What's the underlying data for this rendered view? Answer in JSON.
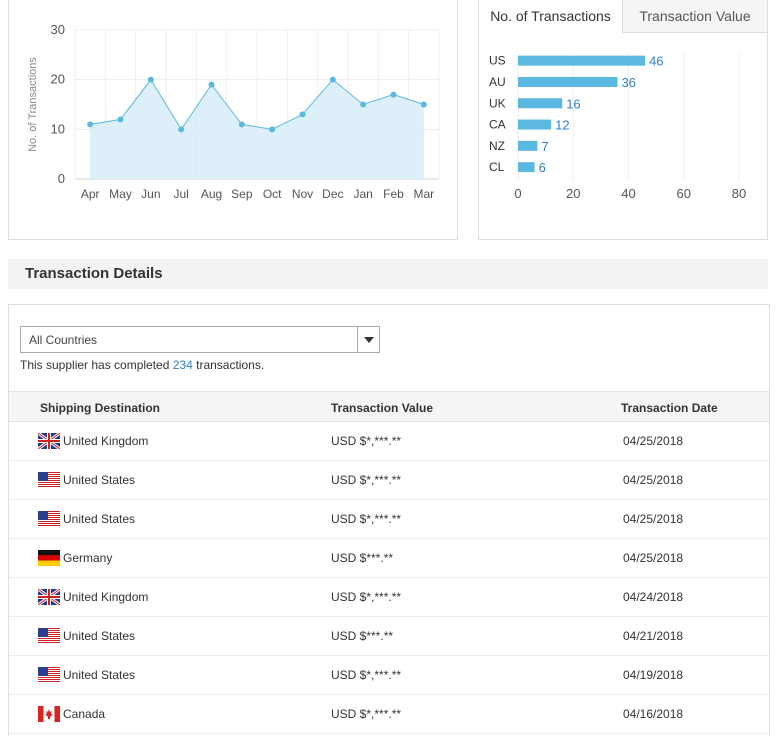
{
  "line_chart": {
    "chart_data": {
      "type": "area",
      "categories": [
        "Apr",
        "May",
        "Jun",
        "Jul",
        "Aug",
        "Sep",
        "Oct",
        "Nov",
        "Dec",
        "Jan",
        "Feb",
        "Mar"
      ],
      "values": [
        11,
        12,
        20,
        10,
        19,
        11,
        10,
        13,
        20,
        15,
        17,
        15
      ],
      "ylabel": "No. of Transactions",
      "ylim": [
        0,
        30
      ],
      "yticks": [
        0,
        10,
        20,
        30
      ],
      "grid": true
    },
    "colors": {
      "line": "#5bb8e0",
      "fill": "#d7ecf8",
      "point": "#5bb8e0"
    }
  },
  "bar_chart": {
    "tabs": [
      {
        "label": "No. of Transactions",
        "active": true
      },
      {
        "label": "Transaction Value",
        "active": false
      }
    ],
    "chart_data": {
      "type": "bar",
      "orientation": "horizontal",
      "categories": [
        "US",
        "AU",
        "UK",
        "CA",
        "NZ",
        "CL"
      ],
      "values": [
        46,
        36,
        16,
        12,
        7,
        6
      ],
      "xlim": [
        0,
        80
      ],
      "xticks": [
        0,
        20,
        40,
        60,
        80
      ],
      "grid": true
    },
    "colors": {
      "bar": "#5bb8e0",
      "label": "#2f7fc1"
    }
  },
  "details": {
    "title": "Transaction Details",
    "filter": {
      "selected": "All Countries"
    },
    "summary": {
      "prefix": "This supplier has completed ",
      "count": "234",
      "suffix": " transactions."
    },
    "columns": [
      "Shipping Destination",
      "Transaction Value",
      "Transaction Date"
    ],
    "rows": [
      {
        "flag": "uk-flag-icon",
        "country": "United Kingdom",
        "value": "USD $*,***.**",
        "date": "04/25/2018"
      },
      {
        "flag": "us-flag-icon",
        "country": "United States",
        "value": "USD $*,***.**",
        "date": "04/25/2018"
      },
      {
        "flag": "us-flag-icon",
        "country": "United States",
        "value": "USD $*,***.**",
        "date": "04/25/2018"
      },
      {
        "flag": "de-flag-icon",
        "country": "Germany",
        "value": "USD $***.**",
        "date": "04/25/2018"
      },
      {
        "flag": "uk-flag-icon",
        "country": "United Kingdom",
        "value": "USD $*,***.**",
        "date": "04/24/2018"
      },
      {
        "flag": "us-flag-icon",
        "country": "United States",
        "value": "USD $***.**",
        "date": "04/21/2018"
      },
      {
        "flag": "us-flag-icon",
        "country": "United States",
        "value": "USD $*,***.**",
        "date": "04/19/2018"
      },
      {
        "flag": "ca-flag-icon",
        "country": "Canada",
        "value": "USD $*,***.**",
        "date": "04/16/2018"
      }
    ]
  }
}
